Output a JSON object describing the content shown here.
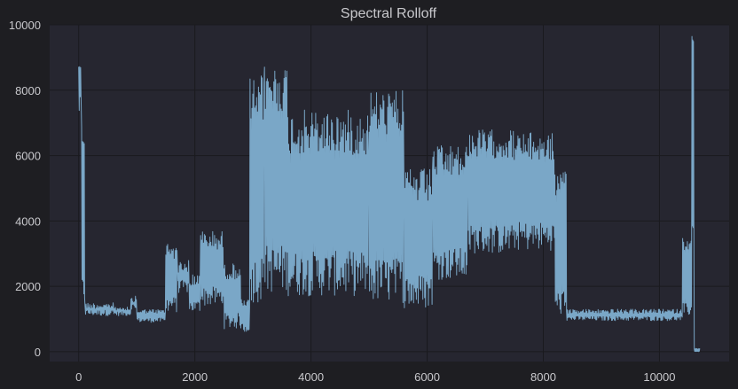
{
  "chart_data": {
    "type": "line",
    "title": "Spectral Rolloff",
    "xlabel": "",
    "ylabel": "",
    "xlim": [
      -500,
      11200
    ],
    "ylim": [
      -300,
      10000
    ],
    "x_ticks": [
      0,
      2000,
      4000,
      6000,
      8000,
      10000
    ],
    "y_ticks": [
      0,
      2000,
      4000,
      6000,
      8000,
      10000
    ],
    "grid": true,
    "legend": "none",
    "colors": {
      "series": "#7aa7c7",
      "plot_background": "#262630",
      "page_background": "#1e1e22",
      "grid": "#1a1a1e",
      "text": "#c8c8cc"
    },
    "series": [
      {
        "segments": [
          {
            "x_start": 0,
            "x_end": 50,
            "low": 7200,
            "high": 9100,
            "noise": 600
          },
          {
            "x_start": 50,
            "x_end": 110,
            "low": 1500,
            "high": 7000,
            "noise": 800
          },
          {
            "x_start": 110,
            "x_end": 600,
            "low": 1100,
            "high": 1500,
            "noise": 200
          },
          {
            "x_start": 600,
            "x_end": 900,
            "low": 1100,
            "high": 1400,
            "noise": 150
          },
          {
            "x_start": 900,
            "x_end": 1000,
            "low": 1300,
            "high": 1700,
            "noise": 200
          },
          {
            "x_start": 1000,
            "x_end": 1500,
            "low": 900,
            "high": 1300,
            "noise": 150
          },
          {
            "x_start": 1500,
            "x_end": 1700,
            "low": 1200,
            "high": 3300,
            "noise": 500
          },
          {
            "x_start": 1700,
            "x_end": 1900,
            "low": 1800,
            "high": 2800,
            "noise": 400
          },
          {
            "x_start": 1900,
            "x_end": 2100,
            "low": 1200,
            "high": 2400,
            "noise": 400
          },
          {
            "x_start": 2100,
            "x_end": 2500,
            "low": 1400,
            "high": 3700,
            "noise": 600
          },
          {
            "x_start": 2500,
            "x_end": 2800,
            "low": 700,
            "high": 2700,
            "noise": 500
          },
          {
            "x_start": 2800,
            "x_end": 2950,
            "low": 600,
            "high": 1600,
            "noise": 300
          },
          {
            "x_start": 2950,
            "x_end": 3200,
            "low": 1500,
            "high": 8500,
            "noise": 1500
          },
          {
            "x_start": 3200,
            "x_end": 3600,
            "low": 1800,
            "high": 8800,
            "noise": 1500
          },
          {
            "x_start": 3600,
            "x_end": 5000,
            "low": 1700,
            "high": 7400,
            "noise": 1400
          },
          {
            "x_start": 5000,
            "x_end": 5600,
            "low": 1500,
            "high": 8000,
            "noise": 1400
          },
          {
            "x_start": 5600,
            "x_end": 6100,
            "low": 1300,
            "high": 5600,
            "noise": 1100
          },
          {
            "x_start": 6100,
            "x_end": 6700,
            "low": 2200,
            "high": 6300,
            "noise": 1000
          },
          {
            "x_start": 6700,
            "x_end": 7500,
            "low": 3000,
            "high": 6800,
            "noise": 900
          },
          {
            "x_start": 7500,
            "x_end": 8200,
            "low": 3100,
            "high": 6700,
            "noise": 900
          },
          {
            "x_start": 8200,
            "x_end": 8400,
            "low": 1100,
            "high": 5500,
            "noise": 800
          },
          {
            "x_start": 8400,
            "x_end": 10400,
            "low": 950,
            "high": 1300,
            "noise": 150
          },
          {
            "x_start": 10400,
            "x_end": 10560,
            "low": 1100,
            "high": 3500,
            "noise": 400
          },
          {
            "x_start": 10560,
            "x_end": 10600,
            "low": 3500,
            "high": 9700,
            "noise": 500
          },
          {
            "x_start": 10600,
            "x_end": 10700,
            "low": 0,
            "high": 100,
            "noise": 20
          }
        ]
      }
    ]
  }
}
